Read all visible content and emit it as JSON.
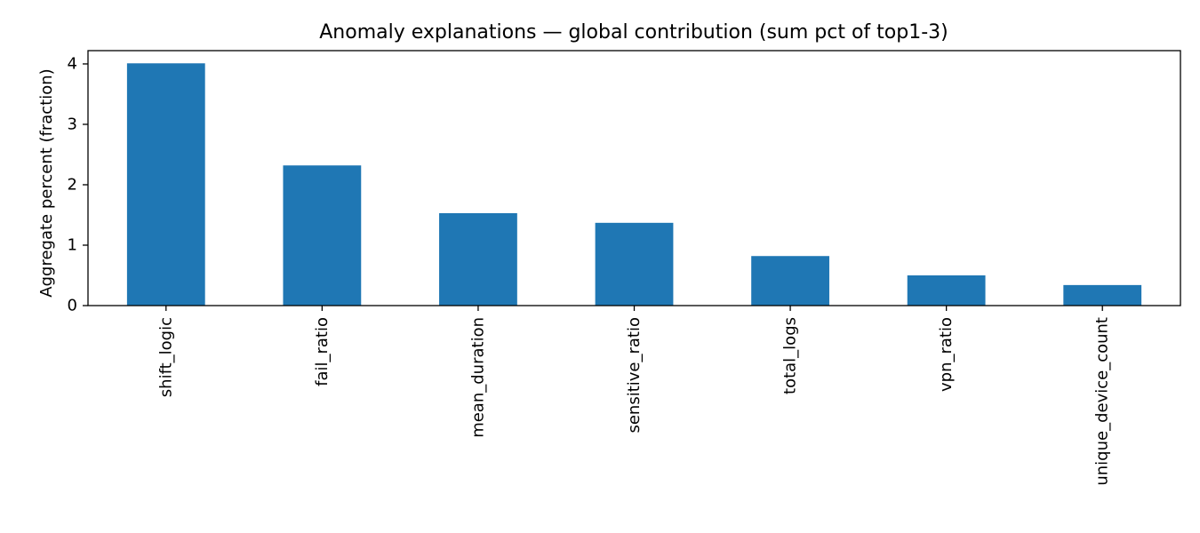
{
  "chart_data": {
    "type": "bar",
    "title": "Anomaly explanations — global contribution (sum pct of top1-3)",
    "xlabel": "",
    "ylabel": "Aggregate percent (fraction)",
    "categories": [
      "shift_logic",
      "fail_ratio",
      "mean_duration",
      "sensitive_ratio",
      "total_logs",
      "vpn_ratio",
      "unique_device_count"
    ],
    "values": [
      4.01,
      2.32,
      1.53,
      1.37,
      0.82,
      0.5,
      0.34
    ],
    "yticks": [
      0,
      1,
      2,
      3,
      4
    ],
    "ylim": [
      0,
      4.22
    ],
    "color": "#1f77b4",
    "grid": false,
    "legend": "none"
  }
}
